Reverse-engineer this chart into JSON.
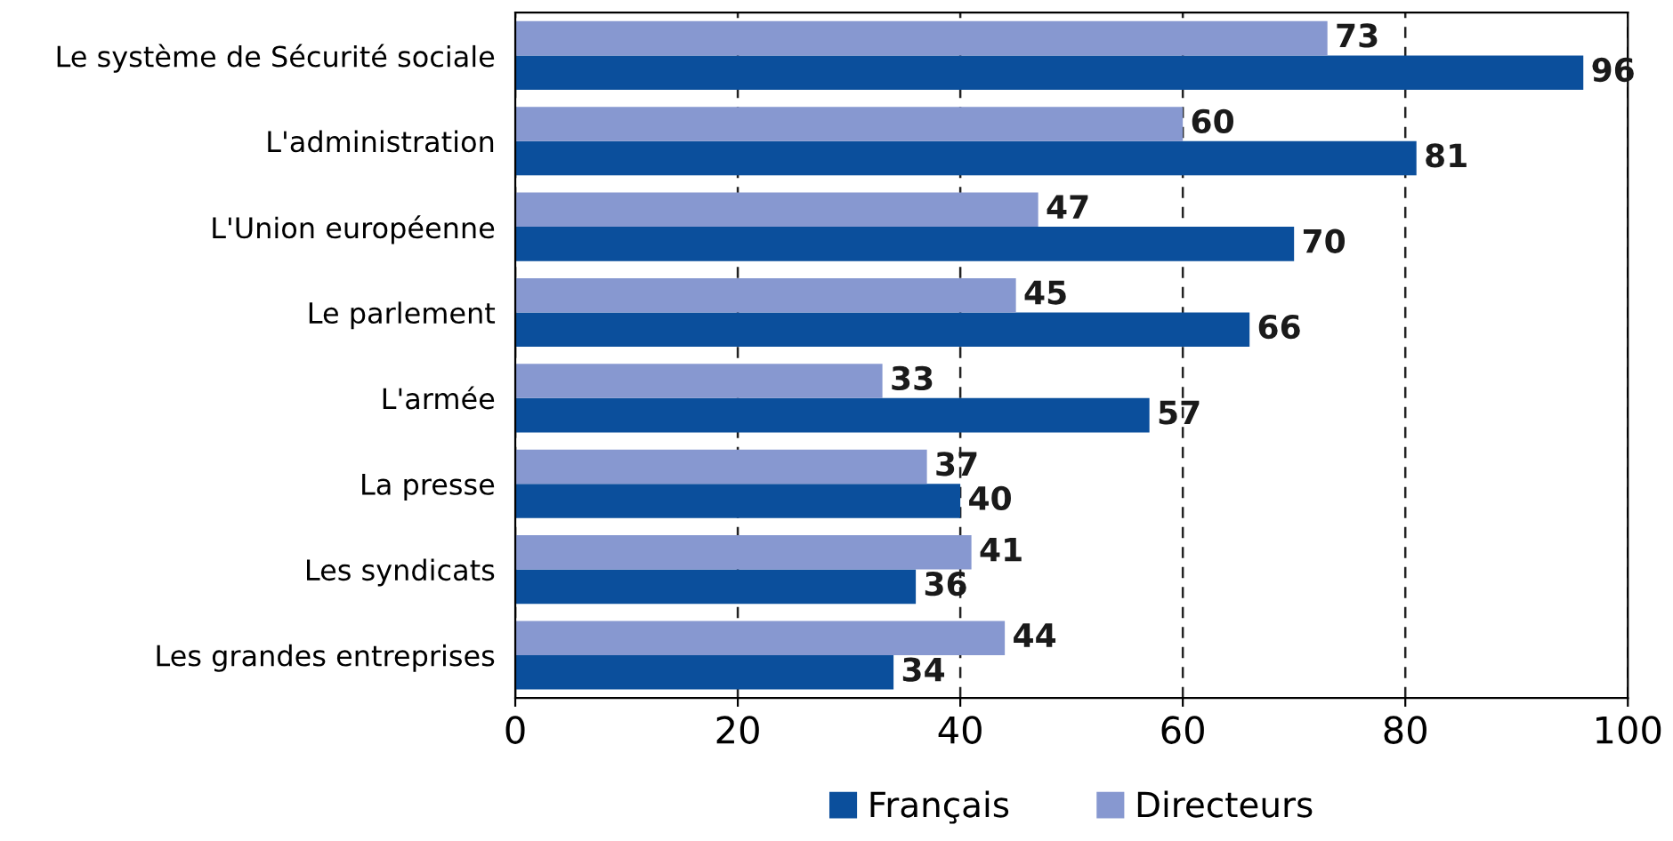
{
  "chart_data": {
    "type": "bar",
    "orientation": "horizontal",
    "categories": [
      "Le système de Sécurité sociale",
      "L'administration",
      "L'Union européenne",
      "Le parlement",
      "L'armée",
      "La presse",
      "Les syndicats",
      "Les grandes entreprises"
    ],
    "series": [
      {
        "name": "Français",
        "color": "#0b4f9c",
        "values": [
          96,
          81,
          70,
          66,
          57,
          40,
          36,
          34
        ]
      },
      {
        "name": "Directeurs",
        "color": "#8798d0",
        "values": [
          73,
          60,
          47,
          45,
          33,
          37,
          41,
          44
        ]
      }
    ],
    "xlim": [
      0,
      100
    ],
    "xticks": [
      0,
      20,
      40,
      60,
      80,
      100
    ],
    "grid": "x",
    "legend": "bottom",
    "data_labels": true
  }
}
